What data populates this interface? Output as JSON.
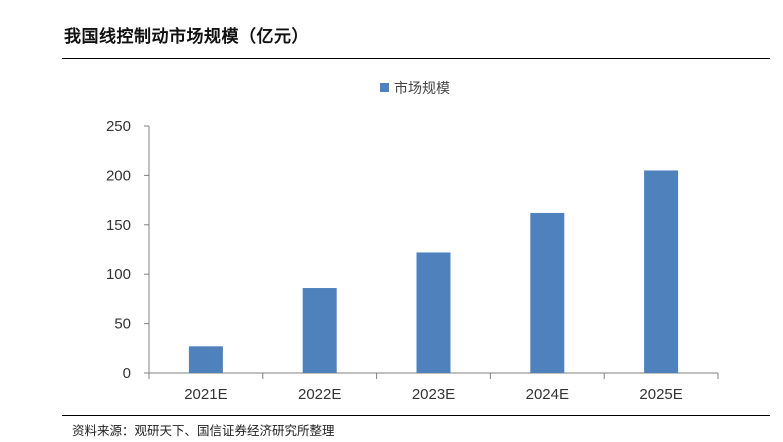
{
  "title": "我国线控制动市场规模（亿元）",
  "source": "资料来源：观研天下、国信证券经济研究所整理",
  "chart_data": {
    "type": "bar",
    "categories": [
      "2021E",
      "2022E",
      "2023E",
      "2024E",
      "2025E"
    ],
    "series": [
      {
        "name": "市场规模",
        "values": [
          27,
          86,
          122,
          162,
          205
        ],
        "color": "#4f81bd"
      }
    ],
    "ylim": [
      0,
      250
    ],
    "yticks": [
      0,
      50,
      100,
      150,
      200,
      250
    ],
    "grid": false,
    "legend_position": "top-center"
  }
}
